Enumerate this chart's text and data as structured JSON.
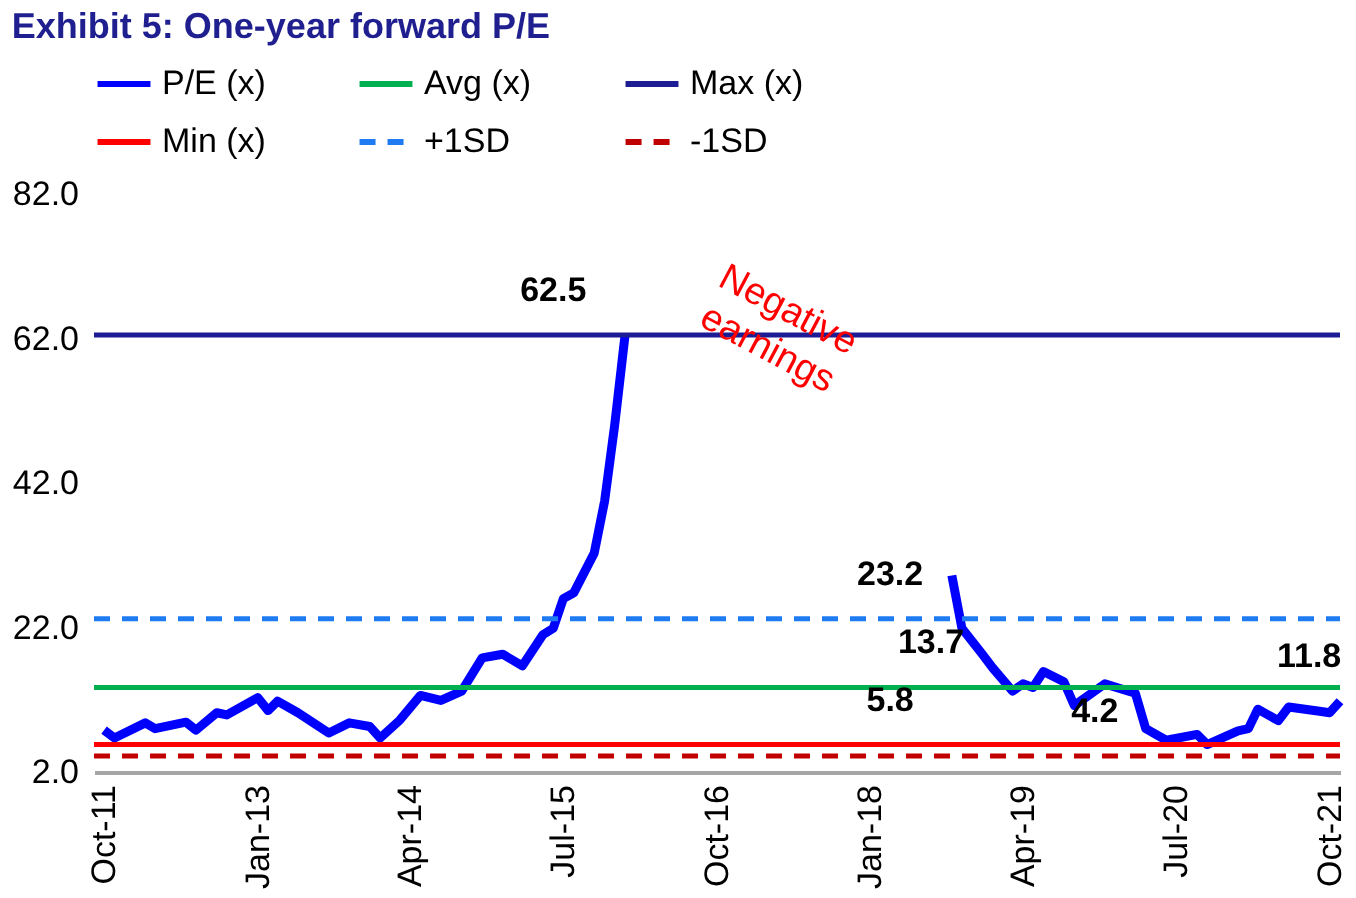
{
  "chart_data": {
    "type": "line",
    "title": "Exhibit 5: One-year forward P/E",
    "legend": "top",
    "xlim": [
      "2011-09",
      "2021-11"
    ],
    "ylim": [
      2,
      82
    ],
    "yticks": [
      {
        "value": 2,
        "label": "2.0"
      },
      {
        "value": 22,
        "label": "22.0"
      },
      {
        "value": 42,
        "label": "42.0"
      },
      {
        "value": 62,
        "label": "62.0"
      },
      {
        "value": 82,
        "label": "82.0"
      }
    ],
    "xticks": [
      {
        "value": "2011-10",
        "label": "Oct-11"
      },
      {
        "value": "2013-01",
        "label": "Jan-13"
      },
      {
        "value": "2014-04",
        "label": "Apr-14"
      },
      {
        "value": "2015-07",
        "label": "Jul-15"
      },
      {
        "value": "2016-10",
        "label": "Oct-16"
      },
      {
        "value": "2018-01",
        "label": "Jan-18"
      },
      {
        "value": "2019-04",
        "label": "Apr-19"
      },
      {
        "value": "2020-07",
        "label": "Jul-20"
      },
      {
        "value": "2021-10",
        "label": "Oct-21"
      }
    ],
    "series": [
      {
        "name": "P/E (x)",
        "color": "#0000ff",
        "line_style": "solid",
        "x": [
          "2011-10",
          "2011-11",
          "2012-02",
          "2012-03",
          "2012-06",
          "2012-07",
          "2012-09",
          "2012-10",
          "2013-01",
          "2013-02",
          "2013-03",
          "2013-05",
          "2013-08",
          "2013-10",
          "2013-12",
          "2014-01",
          "2014-03",
          "2014-05",
          "2014-07",
          "2014-09",
          "2014-11",
          "2015-01",
          "2015-03",
          "2015-05",
          "2015-06",
          "2015-07",
          "2015-08",
          "2015-10",
          "2015-11",
          "2015-12",
          "2016-01",
          "2016-02",
          "2018-09",
          "2018-10",
          "2018-12",
          "2019-01",
          "2019-03",
          "2019-04",
          "2019-05",
          "2019-06",
          "2019-08",
          "2019-09",
          "2019-12",
          "2020-03",
          "2020-04",
          "2020-06",
          "2020-09",
          "2020-10",
          "2021-01",
          "2021-02",
          "2021-03",
          "2021-05",
          "2021-06",
          "2021-09",
          "2021-10",
          "2021-11"
        ],
        "values": [
          7.8,
          6.7,
          8.8,
          8.0,
          8.9,
          7.8,
          10.2,
          9.9,
          12.3,
          10.5,
          11.8,
          10.2,
          7.4,
          8.8,
          8.3,
          6.7,
          9.2,
          12.6,
          11.9,
          13.2,
          17.8,
          18.3,
          16.7,
          21.0,
          21.9,
          26.0,
          26.8,
          32.3,
          39.5,
          50.0,
          62.5,
          null,
          29.2,
          21.9,
          18.3,
          16.4,
          13.2,
          14.2,
          13.7,
          15.9,
          14.5,
          11.2,
          14.2,
          12.9,
          8.0,
          6.4,
          7.2,
          5.8,
          7.7,
          8.0,
          10.7,
          9.1,
          11.0,
          10.4,
          10.2,
          11.8
        ]
      },
      {
        "name": "Avg (x)",
        "color": "#00b050",
        "line_style": "solid",
        "x": [
          "2011-09",
          "2021-11"
        ],
        "values": [
          13.7,
          13.7
        ]
      },
      {
        "name": "Max (x)",
        "color": "#1c1c94",
        "line_style": "solid",
        "x": [
          "2011-09",
          "2021-11"
        ],
        "values": [
          62.5,
          62.5
        ]
      },
      {
        "name": "Min (x)",
        "color": "#ff0000",
        "line_style": "solid",
        "x": [
          "2011-09",
          "2021-11"
        ],
        "values": [
          5.8,
          5.8
        ]
      },
      {
        "name": "+1SD",
        "color": "#1f7bf2",
        "line_style": "dashed",
        "x": [
          "2011-09",
          "2021-11"
        ],
        "values": [
          23.2,
          23.2
        ]
      },
      {
        "name": "-1SD",
        "color": "#c00000",
        "line_style": "dashed",
        "x": [
          "2011-09",
          "2021-11"
        ],
        "values": [
          4.2,
          4.2
        ]
      }
    ],
    "annotations": [
      {
        "text": "62.5",
        "x": "2015-06",
        "y": 62.5
      },
      {
        "text": "23.2",
        "x": "2018-03",
        "y": 23.2
      },
      {
        "text": "13.7",
        "x": "2018-07",
        "y": 13.7
      },
      {
        "text": "5.8",
        "x": "2018-03",
        "y": 5.8
      },
      {
        "text": "4.2",
        "x": "2019-11",
        "y": 4.2
      },
      {
        "text": "11.8",
        "x": "2021-08",
        "y": 11.8
      },
      "Negative earnings"
    ]
  }
}
